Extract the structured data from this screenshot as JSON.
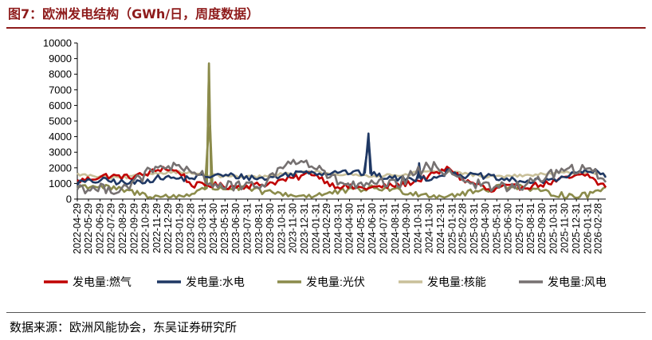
{
  "title": "图7：欧洲发电结构（GWh/日，周度数据）",
  "source": "数据来源：欧洲风能协会，东吴证券研究所",
  "chart_data": {
    "type": "line",
    "title": "图7：欧洲发电结构（GWh/日，周度数据）",
    "xlabel": "",
    "ylabel": "",
    "ylim": [
      0,
      10000
    ],
    "yticks": [
      0,
      1000,
      2000,
      3000,
      4000,
      5000,
      6000,
      7000,
      8000,
      9000,
      10000
    ],
    "x_start": "2022-04-29",
    "x_end": "2026-03-20",
    "x_tick_labels": [
      "2022-04-29",
      "2022-05-29",
      "2022-06-29",
      "2022-07-29",
      "2022-08-29",
      "2022-09-29",
      "2022-10-29",
      "2022-11-29",
      "2022-12-29",
      "2023-01-29",
      "2023-02-28",
      "2023-03-31",
      "2023-04-30",
      "2023-05-31",
      "2023-06-30",
      "2023-07-31",
      "2023-08-31",
      "2023-09-30",
      "2023-10-31",
      "2023-11-30",
      "2023-12-31",
      "2024-01-31",
      "2024-02-29",
      "2024-03-31",
      "2024-04-30",
      "2024-05-31",
      "2024-06-30",
      "2024-07-31",
      "2024-08-31",
      "2024-09-30",
      "2024-10-31",
      "2024-11-30",
      "2024-12-31",
      "2025-01-31",
      "2025-02-28",
      "2025-03-31",
      "2025-04-30",
      "2025-05-31",
      "2025-06-30",
      "2025-07-31",
      "2025-08-31",
      "2025-09-30",
      "2025-10-31",
      "2025-11-30",
      "2025-12-31",
      "2026-01-31",
      "2026-02-28"
    ],
    "grid": false,
    "legend_position": "bottom",
    "series": [
      {
        "name": "发电量:燃气",
        "color": "#c00000",
        "points": [
          [
            "2022-04-29",
            1150
          ],
          [
            "2022-07-15",
            1500
          ],
          [
            "2022-09-15",
            1400
          ],
          [
            "2022-11-01",
            1600
          ],
          [
            "2022-12-15",
            2000
          ],
          [
            "2023-02-01",
            1700
          ],
          [
            "2023-03-01",
            900
          ],
          [
            "2023-04-30",
            900
          ],
          [
            "2023-06-15",
            800
          ],
          [
            "2023-08-01",
            850
          ],
          [
            "2023-09-15",
            950
          ],
          [
            "2023-11-01",
            1200
          ],
          [
            "2023-12-15",
            1400
          ],
          [
            "2024-01-20",
            1700
          ],
          [
            "2024-03-15",
            900
          ],
          [
            "2024-05-01",
            750
          ],
          [
            "2024-06-15",
            700
          ],
          [
            "2024-08-01",
            800
          ],
          [
            "2024-09-15",
            900
          ],
          [
            "2024-11-01",
            1200
          ],
          [
            "2024-12-15",
            1600
          ],
          [
            "2025-01-25",
            2000
          ],
          [
            "2025-03-01",
            1200
          ],
          [
            "2025-04-15",
            900
          ],
          [
            "2025-05-15",
            450
          ],
          [
            "2025-06-15",
            800
          ],
          [
            "2025-07-20",
            750
          ],
          [
            "2025-09-01",
            850
          ],
          [
            "2025-10-15",
            1000
          ],
          [
            "2025-11-20",
            1250
          ],
          [
            "2026-01-01",
            1450
          ],
          [
            "2026-02-01",
            1550
          ],
          [
            "2026-02-28",
            1000
          ],
          [
            "2026-03-20",
            850
          ]
        ]
      },
      {
        "name": "发电量:水电",
        "color": "#1f3864",
        "points": [
          [
            "2022-04-29",
            1050
          ],
          [
            "2022-07-15",
            1200
          ],
          [
            "2022-09-15",
            1000
          ],
          [
            "2022-11-01",
            1200
          ],
          [
            "2022-12-15",
            1400
          ],
          [
            "2023-02-01",
            1300
          ],
          [
            "2023-03-15",
            1400
          ],
          [
            "2023-04-30",
            1500
          ],
          [
            "2023-06-15",
            1500
          ],
          [
            "2023-08-01",
            1400
          ],
          [
            "2023-09-15",
            1300
          ],
          [
            "2023-11-01",
            1500
          ],
          [
            "2023-12-15",
            1700
          ],
          [
            "2024-01-20",
            1800
          ],
          [
            "2024-02-20",
            1600
          ],
          [
            "2024-03-20",
            1800
          ],
          [
            "2024-05-01",
            1700
          ],
          [
            "2024-06-10",
            1650
          ],
          [
            "2024-06-20",
            4200
          ],
          [
            "2024-06-25",
            1600
          ],
          [
            "2024-08-01",
            1400
          ],
          [
            "2024-09-15",
            1300
          ],
          [
            "2024-10-31",
            1300
          ],
          [
            "2024-11-03",
            2300
          ],
          [
            "2024-11-08",
            1300
          ],
          [
            "2024-12-15",
            1400
          ],
          [
            "2025-01-25",
            1800
          ],
          [
            "2025-03-01",
            1500
          ],
          [
            "2025-04-15",
            1500
          ],
          [
            "2025-05-15",
            1400
          ],
          [
            "2025-06-15",
            1250
          ],
          [
            "2025-07-20",
            1200
          ],
          [
            "2025-09-01",
            1100
          ],
          [
            "2025-10-15",
            1200
          ],
          [
            "2025-11-20",
            1400
          ],
          [
            "2026-01-01",
            1650
          ],
          [
            "2026-02-01",
            1800
          ],
          [
            "2026-02-28",
            1700
          ],
          [
            "2026-03-20",
            1400
          ]
        ]
      },
      {
        "name": "发电量:光伏",
        "color": "#8b8b4b",
        "points": [
          [
            "2022-04-29",
            800
          ],
          [
            "2022-06-15",
            850
          ],
          [
            "2022-07-15",
            750
          ],
          [
            "2022-09-01",
            550
          ],
          [
            "2022-10-15",
            350
          ],
          [
            "2022-11-15",
            200
          ],
          [
            "2022-12-15",
            150
          ],
          [
            "2023-01-31",
            200
          ],
          [
            "2023-03-01",
            350
          ],
          [
            "2023-04-05",
            600
          ],
          [
            "2023-04-12",
            700
          ],
          [
            "2023-04-18",
            8700
          ],
          [
            "2023-04-24",
            700
          ],
          [
            "2023-06-15",
            700
          ],
          [
            "2023-08-01",
            650
          ],
          [
            "2023-09-15",
            450
          ],
          [
            "2023-10-31",
            350
          ],
          [
            "2023-12-15",
            200
          ],
          [
            "2024-01-31",
            250
          ],
          [
            "2024-03-01",
            350
          ],
          [
            "2024-04-01",
            450
          ],
          [
            "2024-05-15",
            600
          ],
          [
            "2024-07-01",
            700
          ],
          [
            "2024-08-15",
            650
          ],
          [
            "2024-10-01",
            450
          ],
          [
            "2024-11-15",
            300
          ],
          [
            "2024-12-31",
            200
          ],
          [
            "2025-02-01",
            250
          ],
          [
            "2025-03-15",
            400
          ],
          [
            "2025-04-30",
            600
          ],
          [
            "2025-06-15",
            850
          ],
          [
            "2025-07-31",
            800
          ],
          [
            "2025-09-15",
            500
          ],
          [
            "2025-10-31",
            350
          ],
          [
            "2025-12-15",
            200
          ],
          [
            "2026-01-31",
            250
          ],
          [
            "2026-02-28",
            550
          ],
          [
            "2026-03-20",
            900
          ]
        ]
      },
      {
        "name": "发电量:核能",
        "color": "#c9c09a",
        "points": [
          [
            "2022-04-29",
            1600
          ],
          [
            "2022-06-15",
            1450
          ],
          [
            "2022-08-01",
            1350
          ],
          [
            "2022-09-15",
            1400
          ],
          [
            "2022-11-01",
            1600
          ],
          [
            "2022-12-15",
            1700
          ],
          [
            "2023-01-31",
            1750
          ],
          [
            "2023-03-01",
            1650
          ],
          [
            "2023-04-30",
            1500
          ],
          [
            "2023-06-15",
            1450
          ],
          [
            "2023-08-01",
            1400
          ],
          [
            "2023-09-15",
            1450
          ],
          [
            "2023-11-01",
            1600
          ],
          [
            "2023-12-15",
            1700
          ],
          [
            "2024-01-31",
            1750
          ],
          [
            "2024-03-01",
            1650
          ],
          [
            "2024-04-30",
            1550
          ],
          [
            "2024-06-15",
            1500
          ],
          [
            "2024-08-01",
            1500
          ],
          [
            "2024-09-15",
            1550
          ],
          [
            "2024-11-01",
            1700
          ],
          [
            "2024-12-15",
            1750
          ],
          [
            "2025-01-31",
            1750
          ],
          [
            "2025-03-01",
            1650
          ],
          [
            "2025-04-30",
            1450
          ],
          [
            "2025-06-15",
            1450
          ],
          [
            "2025-08-01",
            1500
          ],
          [
            "2025-09-15",
            1550
          ],
          [
            "2025-11-01",
            1650
          ],
          [
            "2025-12-15",
            1700
          ],
          [
            "2026-01-31",
            1750
          ],
          [
            "2026-02-28",
            1650
          ],
          [
            "2026-03-20",
            1550
          ]
        ]
      },
      {
        "name": "发电量:风电",
        "color": "#767171",
        "points": [
          [
            "2022-04-29",
            800
          ],
          [
            "2022-06-15",
            600
          ],
          [
            "2022-07-15",
            700
          ],
          [
            "2022-08-15",
            600
          ],
          [
            "2022-09-15",
            900
          ],
          [
            "2022-10-15",
            1300
          ],
          [
            "2022-11-01",
            1700
          ],
          [
            "2022-12-01",
            1900
          ],
          [
            "2023-01-01",
            2200
          ],
          [
            "2023-02-01",
            1800
          ],
          [
            "2023-03-01",
            1700
          ],
          [
            "2023-04-01",
            1500
          ],
          [
            "2023-05-01",
            900
          ],
          [
            "2023-06-01",
            800
          ],
          [
            "2023-07-01",
            900
          ],
          [
            "2023-08-01",
            700
          ],
          [
            "2023-09-01",
            900
          ],
          [
            "2023-10-01",
            1400
          ],
          [
            "2023-11-01",
            2000
          ],
          [
            "2023-12-01",
            2500
          ],
          [
            "2024-01-01",
            2300
          ],
          [
            "2024-02-01",
            2000
          ],
          [
            "2024-03-01",
            1500
          ],
          [
            "2024-04-01",
            1100
          ],
          [
            "2024-05-01",
            900
          ],
          [
            "2024-06-01",
            800
          ],
          [
            "2024-07-01",
            900
          ],
          [
            "2024-08-01",
            1000
          ],
          [
            "2024-09-01",
            900
          ],
          [
            "2024-10-01",
            1300
          ],
          [
            "2024-11-01",
            1800
          ],
          [
            "2024-12-01",
            2100
          ],
          [
            "2025-01-01",
            1900
          ],
          [
            "2025-02-01",
            1700
          ],
          [
            "2025-03-01",
            1300
          ],
          [
            "2025-04-01",
            1000
          ],
          [
            "2025-05-01",
            800
          ],
          [
            "2025-06-01",
            750
          ],
          [
            "2025-07-01",
            800
          ],
          [
            "2025-08-01",
            850
          ],
          [
            "2025-09-01",
            1000
          ],
          [
            "2025-10-01",
            1400
          ],
          [
            "2025-11-01",
            1700
          ],
          [
            "2025-12-01",
            1800
          ],
          [
            "2026-01-01",
            1900
          ],
          [
            "2026-02-01",
            1800
          ],
          [
            "2026-02-28",
            1600
          ],
          [
            "2026-03-20",
            1200
          ]
        ]
      }
    ]
  }
}
